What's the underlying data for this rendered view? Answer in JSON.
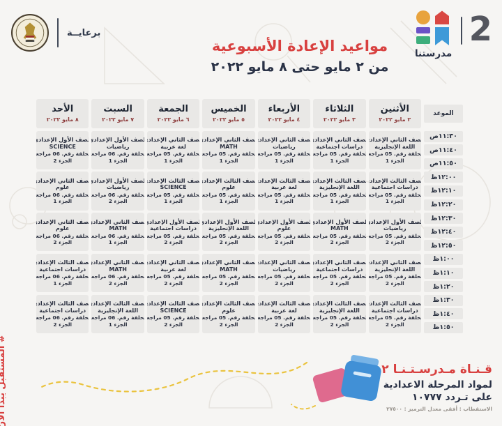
{
  "header": {
    "sponsor": {
      "label": "برعايــة"
    },
    "brand": {
      "channel_number": "2",
      "name": "مدرستنا"
    },
    "title": "مواعيد الإعادة الأسبوعية",
    "subtitle": "من ٢ مايو حتى ٨ مايو ٢٠٢٢"
  },
  "table": {
    "time_header": "الموعد",
    "times": [
      "١١:٣٠ص",
      "١١:٤٠ص",
      "١١:٥٠ص",
      "١٢:٠٠ظ",
      "١٢:١٠ظ",
      "١٢:٢٠ظ",
      "١٢:٣٠ظ",
      "١٢:٤٠ظ",
      "١٢:٥٠ظ",
      "١:٠٠ظ",
      "١:١٠ظ",
      "١:٢٠ظ",
      "١:٣٠ظ",
      "١:٤٠ظ",
      "١:٥٠ظ"
    ],
    "days": [
      {
        "name": "الأثنين",
        "date": "٢ مايو ٢٠٢٢",
        "slots": [
          {
            "grade": "الصف الثاني الإعدادي",
            "subject": "اللغة الإنجليزية",
            "episode": "الحلقة رقم. 05 مراجعة",
            "part": "الجزء 1"
          },
          {
            "grade": "الصف الثالث الإعدادي",
            "subject": "دراسات اجتماعية",
            "episode": "الحلقة رقم. 05 مراجعة",
            "part": "الجزء 1"
          },
          {
            "grade": "الصف الأول الإعدادي",
            "subject": "رياضيات",
            "episode": "الحلقة رقم. 05 مراجعة",
            "part": "الجزء 2"
          },
          {
            "grade": "الصف الثاني الإعدادي",
            "subject": "اللغة الإنجليزية",
            "episode": "الحلقة رقم. 05 مراجعة",
            "part": "الجزء 2"
          },
          {
            "grade": "الصف الثالث الإعدادي",
            "subject": "دراسات اجتماعية",
            "episode": "الحلقة رقم. 05 مراجعة",
            "part": "الجزء 2"
          }
        ]
      },
      {
        "name": "الثلاثاء",
        "date": "٣ مايو ٢٠٢٢",
        "slots": [
          {
            "grade": "الصف الثاني الإعدادي",
            "subject": "دراسات اجتماعية",
            "episode": "الحلقة رقم. 05 مراجعة",
            "part": "الجزء 1"
          },
          {
            "grade": "الصف الثالث الإعدادي",
            "subject": "اللغة الإنجليزية",
            "episode": "الحلقة رقم. 05 مراجعة",
            "part": "الجزء 1"
          },
          {
            "grade": "الصف الأول الإعدادي",
            "subject": "MATH",
            "episode": "الحلقة رقم. 05 مراجعة",
            "part": "الجزء 2"
          },
          {
            "grade": "الصف الثاني الإعدادي",
            "subject": "دراسات اجتماعية",
            "episode": "الحلقة رقم. 05 مراجعة",
            "part": "الجزء 2"
          },
          {
            "grade": "الصف الثالث الإعدادي",
            "subject": "اللغة الإنجليزية",
            "episode": "الحلقة رقم. 05 مراجعة",
            "part": "الجزء 2"
          }
        ]
      },
      {
        "name": "الأربعاء",
        "date": "٤ مايو ٢٠٢٢",
        "slots": [
          {
            "grade": "الصف الثاني الإعدادي",
            "subject": "رياضيات",
            "episode": "الحلقة رقم. 05 مراجعة",
            "part": "الجزء 1"
          },
          {
            "grade": "الصف الثالث الإعدادي",
            "subject": "لغة عربية",
            "episode": "الحلقة رقم. 05 مراجعة",
            "part": "الجزء 1"
          },
          {
            "grade": "الصف الأول الإعدادي",
            "subject": "علوم",
            "episode": "الحلقة رقم. 05 مراجعة",
            "part": "الجزء 2"
          },
          {
            "grade": "الصف الثاني الإعدادي",
            "subject": "رياضيات",
            "episode": "الحلقة رقم. 05 مراجعة",
            "part": "الجزء 2"
          },
          {
            "grade": "الصف الثالث الإعدادي",
            "subject": "لغة عربية",
            "episode": "الحلقة رقم. 05 مراجعة",
            "part": "الجزء 2"
          }
        ]
      },
      {
        "name": "الخميس",
        "date": "٥ مايو ٢٠٢٢",
        "slots": [
          {
            "grade": "الصف الثاني الإعدادي",
            "subject": "MATH",
            "episode": "الحلقة رقم. 05 مراجعة",
            "part": "الجزء 1"
          },
          {
            "grade": "الصف الثالث الإعدادي",
            "subject": "علوم",
            "episode": "الحلقة رقم. 05 مراجعة",
            "part": "الجزء 1"
          },
          {
            "grade": "الصف الأول الإعدادي",
            "subject": "اللغة الإنجليزية",
            "episode": "الحلقة رقم. 05 مراجعة",
            "part": "الجزء 2"
          },
          {
            "grade": "الصف الثاني الإعدادي",
            "subject": "MATH",
            "episode": "الحلقة رقم. 05 مراجعة",
            "part": "الجزء 2"
          },
          {
            "grade": "الصف الثالث الإعدادي",
            "subject": "علوم",
            "episode": "الحلقة رقم. 05 مراجعة",
            "part": "الجزء 2"
          }
        ]
      },
      {
        "name": "الجمعة",
        "date": "٦ مايو ٢٠٢٢",
        "slots": [
          {
            "grade": "الصف الثاني الإعدادي",
            "subject": "لغة عربية",
            "episode": "الحلقة رقم. 05 مراجعة",
            "part": "الجزء 1"
          },
          {
            "grade": "الصف الثالث الإعدادي",
            "subject": "SCIENCE",
            "episode": "الحلقة رقم. 05 مراجعة",
            "part": "الجزء 1"
          },
          {
            "grade": "الصف الأول الإعدادي",
            "subject": "دراسات اجتماعية",
            "episode": "الحلقة رقم. 05 مراجعة",
            "part": "الجزء 2"
          },
          {
            "grade": "الصف الثاني الإعدادي",
            "subject": "لغة عربية",
            "episode": "الحلقة رقم. 05 مراجعة",
            "part": "الجزء 2"
          },
          {
            "grade": "الصف الثالث الإعدادي",
            "subject": "SCIENCE",
            "episode": "الحلقة رقم. 05 مراجعة",
            "part": "الجزء 2"
          }
        ]
      },
      {
        "name": "السبت",
        "date": "٧ مايو ٢٠٢٢",
        "slots": [
          {
            "grade": "الصف الأول الإعدادي",
            "subject": "رياضيات",
            "episode": "الحلقة رقم. 06 مراجعة",
            "part": "الجزء 1"
          },
          {
            "grade": "الصف الأول الإعدادي",
            "subject": "رياضيات",
            "episode": "الحلقة رقم. 06 مراجعة",
            "part": "الجزء 2"
          },
          {
            "grade": "الصف الثاني الإعدادي",
            "subject": "MATH",
            "episode": "الحلقة رقم. 06 مراجعة",
            "part": "الجزء 1"
          },
          {
            "grade": "الصف الثاني الإعدادي",
            "subject": "MATH",
            "episode": "الحلقة رقم. 06 مراجعة",
            "part": "الجزء 2"
          },
          {
            "grade": "الصف الثالث الإعدادي",
            "subject": "اللغة الإنجليزية",
            "episode": "الحلقة رقم. 06 مراجعة",
            "part": "الجزء 1"
          }
        ]
      },
      {
        "name": "الأحد",
        "date": "٨ مايو ٢٠٢٢",
        "slots": [
          {
            "grade": "الصف الأول الإعدادي",
            "subject": "SCIENCE",
            "episode": "الحلقة رقم. 06 مراجعة",
            "part": "الجزء 2"
          },
          {
            "grade": "الصف الثاني الإعدادي",
            "subject": "علوم",
            "episode": "الحلقة رقم. 06 مراجعة",
            "part": "الجزء 1"
          },
          {
            "grade": "الصف الثاني الإعدادي",
            "subject": "علوم",
            "episode": "الحلقة رقم. 06 مراجعة",
            "part": "الجزء 2"
          },
          {
            "grade": "الصف الثالث الإعدادي",
            "subject": "دراسات اجتماعية",
            "episode": "الحلقة رقم. 06 مراجعة",
            "part": "الجزء 1"
          },
          {
            "grade": "الصف الثالث الإعدادي",
            "subject": "دراسات اجتماعية",
            "episode": "الحلقة رقم. 06 مراجعة",
            "part": "الجزء 2"
          }
        ]
      }
    ]
  },
  "footer": {
    "hashtag": "# المستقبل يبدأ الآن",
    "channel_name": "قـنـاة مـدرسـتـنـا ٢",
    "audience_line": "لمواد المرحلة الاعدادية",
    "frequency_line": "على تـردد ١٠٧٧٧",
    "tech_line": "الاستقطاب : أفقى معدل الترميز : ٢٧٥٠٠"
  },
  "icons": {
    "ministry_seal": "ministry-of-education-seal",
    "brand_mark": "madrasetna-logo"
  },
  "colors": {
    "accent_red": "#d8403f",
    "navy": "#2b3347",
    "date_maroon": "#8d3c3c",
    "cell_bg": "#e9e8e6",
    "page_bg": "#f6f5f3",
    "logo_orange": "#e8a33d",
    "logo_red": "#d94843",
    "logo_purple": "#6a52c7",
    "logo_green": "#3dae7c",
    "logo_blue": "#3e9ad8",
    "doodle_yellow": "#eac33e"
  }
}
